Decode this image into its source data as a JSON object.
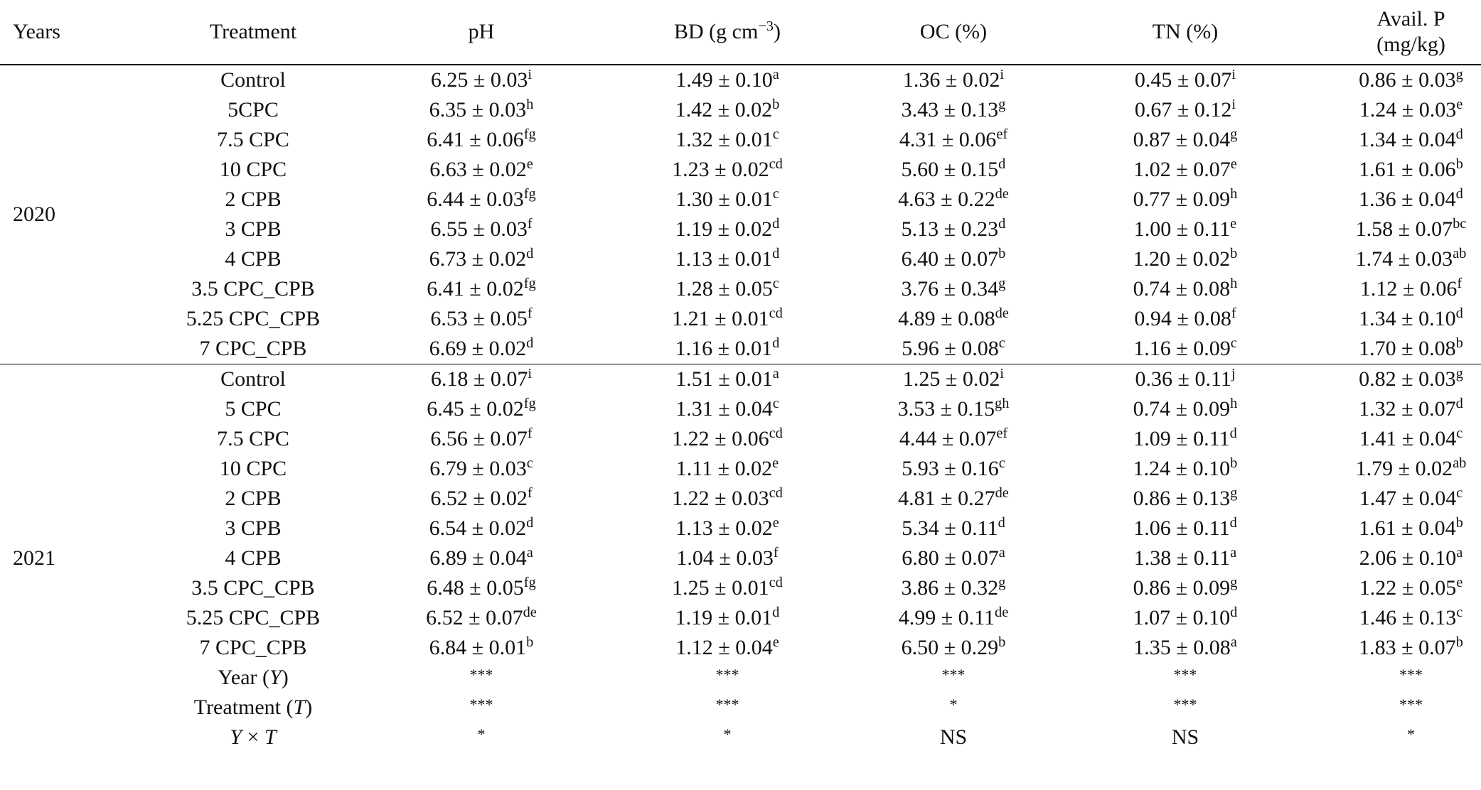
{
  "table": {
    "header": [
      "Years",
      "Treatment",
      "pH",
      [
        {
          "text": "BD (g cm"
        },
        {
          "text": "−3",
          "style": "sup"
        },
        {
          "text": ")"
        }
      ],
      "OC (%)",
      "TN (%)",
      {
        "lines": [
          "Avail. P",
          "(mg/kg)"
        ]
      }
    ],
    "groups": [
      {
        "year": "2020",
        "rows": [
          {
            "treatment": "Control",
            "cells": [
              [
                "6.25 ± 0.03",
                "i"
              ],
              [
                "1.49 ± 0.10",
                "a"
              ],
              [
                "1.36 ± 0.02",
                "i"
              ],
              [
                "0.45 ± 0.07",
                "i"
              ],
              [
                "0.86 ± 0.03",
                "g"
              ]
            ]
          },
          {
            "treatment": "5CPC",
            "cells": [
              [
                "6.35 ± 0.03",
                "h"
              ],
              [
                "1.42 ± 0.02",
                "b"
              ],
              [
                "3.43 ± 0.13",
                "g"
              ],
              [
                "0.67 ± 0.12",
                "i"
              ],
              [
                "1.24 ± 0.03",
                "e"
              ]
            ]
          },
          {
            "treatment": "7.5 CPC",
            "cells": [
              [
                "6.41 ± 0.06",
                "fg"
              ],
              [
                "1.32 ± 0.01",
                "c"
              ],
              [
                "4.31 ± 0.06",
                "ef"
              ],
              [
                "0.87 ± 0.04",
                "g"
              ],
              [
                "1.34 ± 0.04",
                "d"
              ]
            ]
          },
          {
            "treatment": "10 CPC",
            "cells": [
              [
                "6.63 ± 0.02",
                "e"
              ],
              [
                "1.23 ± 0.02",
                "cd"
              ],
              [
                "5.60 ± 0.15",
                "d"
              ],
              [
                "1.02 ± 0.07",
                "e"
              ],
              [
                "1.61 ± 0.06",
                "b"
              ]
            ]
          },
          {
            "treatment": "2 CPB",
            "cells": [
              [
                "6.44 ± 0.03",
                "fg"
              ],
              [
                "1.30 ± 0.01",
                "c"
              ],
              [
                "4.63 ± 0.22",
                "de"
              ],
              [
                "0.77 ± 0.09",
                "h"
              ],
              [
                "1.36 ± 0.04",
                "d"
              ]
            ]
          },
          {
            "treatment": "3 CPB",
            "cells": [
              [
                "6.55 ± 0.03",
                "f"
              ],
              [
                "1.19 ± 0.02",
                "d"
              ],
              [
                "5.13 ± 0.23",
                "d"
              ],
              [
                "1.00 ± 0.11",
                "e"
              ],
              [
                "1.58 ± 0.07",
                "bc"
              ]
            ]
          },
          {
            "treatment": "4 CPB",
            "cells": [
              [
                "6.73 ± 0.02",
                "d"
              ],
              [
                "1.13 ± 0.01",
                "d"
              ],
              [
                "6.40 ± 0.07",
                "b"
              ],
              [
                "1.20 ± 0.02",
                "b"
              ],
              [
                "1.74 ± 0.03",
                "ab"
              ]
            ]
          },
          {
            "treatment": "3.5 CPC_CPB",
            "cells": [
              [
                "6.41 ± 0.02",
                "fg"
              ],
              [
                "1.28 ± 0.05",
                "c"
              ],
              [
                "3.76 ± 0.34",
                "g"
              ],
              [
                "0.74 ± 0.08",
                "h"
              ],
              [
                "1.12 ± 0.06",
                "f"
              ]
            ]
          },
          {
            "treatment": "5.25 CPC_CPB",
            "cells": [
              [
                "6.53 ± 0.05",
                "f"
              ],
              [
                "1.21 ± 0.01",
                "cd"
              ],
              [
                "4.89 ± 0.08",
                "de"
              ],
              [
                "0.94 ± 0.08",
                "f"
              ],
              [
                "1.34 ± 0.10",
                "d"
              ]
            ]
          },
          {
            "treatment": "7 CPC_CPB",
            "cells": [
              [
                "6.69 ± 0.02",
                "d"
              ],
              [
                "1.16 ± 0.01",
                "d"
              ],
              [
                "5.96 ± 0.08",
                "c"
              ],
              [
                "1.16 ± 0.09",
                "c"
              ],
              [
                "1.70 ± 0.08",
                "b"
              ]
            ]
          }
        ]
      },
      {
        "year": "2021",
        "rows": [
          {
            "treatment": "Control",
            "cells": [
              [
                "6.18 ± 0.07",
                "i"
              ],
              [
                "1.51 ± 0.01",
                "a"
              ],
              [
                "1.25 ± 0.02",
                "i"
              ],
              [
                "0.36 ± 0.11",
                "j"
              ],
              [
                "0.82 ± 0.03",
                "g"
              ]
            ]
          },
          {
            "treatment": "5 CPC",
            "cells": [
              [
                "6.45 ± 0.02",
                "fg"
              ],
              [
                "1.31 ± 0.04",
                "c"
              ],
              [
                "3.53 ± 0.15",
                "gh"
              ],
              [
                "0.74 ± 0.09",
                "h"
              ],
              [
                "1.32 ± 0.07",
                "d"
              ]
            ]
          },
          {
            "treatment": "7.5 CPC",
            "cells": [
              [
                "6.56 ± 0.07",
                "f"
              ],
              [
                "1.22 ± 0.06",
                "cd"
              ],
              [
                "4.44 ± 0.07",
                "ef"
              ],
              [
                "1.09 ± 0.11",
                "d"
              ],
              [
                "1.41 ± 0.04",
                "c"
              ]
            ]
          },
          {
            "treatment": "10 CPC",
            "cells": [
              [
                "6.79 ± 0.03",
                "c"
              ],
              [
                "1.11 ± 0.02",
                "e"
              ],
              [
                "5.93 ± 0.16",
                "c"
              ],
              [
                "1.24 ± 0.10",
                "b"
              ],
              [
                "1.79 ± 0.02",
                "ab"
              ]
            ]
          },
          {
            "treatment": "2 CPB",
            "cells": [
              [
                "6.52 ± 0.02",
                "f"
              ],
              [
                "1.22 ± 0.03",
                "cd"
              ],
              [
                "4.81 ± 0.27",
                "de"
              ],
              [
                "0.86 ± 0.13",
                "g"
              ],
              [
                "1.47 ± 0.04",
                "c"
              ]
            ]
          },
          {
            "treatment": "3 CPB",
            "cells": [
              [
                "6.54 ± 0.02",
                "d"
              ],
              [
                "1.13 ± 0.02",
                "e"
              ],
              [
                "5.34 ± 0.11",
                "d"
              ],
              [
                "1.06 ± 0.11",
                "d"
              ],
              [
                "1.61 ± 0.04",
                "b"
              ]
            ]
          },
          {
            "treatment": "4 CPB",
            "cells": [
              [
                "6.89 ± 0.04",
                "a"
              ],
              [
                "1.04 ± 0.03",
                "f"
              ],
              [
                "6.80 ± 0.07",
                "a"
              ],
              [
                "1.38 ± 0.11",
                "a"
              ],
              [
                "2.06 ± 0.10",
                "a"
              ]
            ]
          },
          {
            "treatment": "3.5 CPC_CPB",
            "cells": [
              [
                "6.48 ± 0.05",
                "fg"
              ],
              [
                "1.25 ± 0.01",
                "cd"
              ],
              [
                "3.86 ± 0.32",
                "g"
              ],
              [
                "0.86 ± 0.09",
                "g"
              ],
              [
                "1.22 ± 0.05",
                "e"
              ]
            ]
          },
          {
            "treatment": "5.25 CPC_CPB",
            "cells": [
              [
                "6.52 ± 0.07",
                "de"
              ],
              [
                "1.19 ± 0.01",
                "d"
              ],
              [
                "4.99 ± 0.11",
                "de"
              ],
              [
                "1.07 ± 0.10",
                "d"
              ],
              [
                "1.46 ± 0.13",
                "c"
              ]
            ]
          },
          {
            "treatment": "7 CPC_CPB",
            "cells": [
              [
                "6.84 ± 0.01",
                "b"
              ],
              [
                "1.12 ± 0.04",
                "e"
              ],
              [
                "6.50 ± 0.29",
                "b"
              ],
              [
                "1.35 ± 0.08",
                "a"
              ],
              [
                "1.83 ± 0.07",
                "b"
              ]
            ]
          },
          {
            "treatment": [
              {
                "text": "Year ("
              },
              {
                "text": "Y",
                "style": "italic"
              },
              {
                "text": ")"
              }
            ],
            "cells": [
              "***",
              "***",
              "***",
              "***",
              "***"
            ]
          },
          {
            "treatment": [
              {
                "text": "Treatment ("
              },
              {
                "text": "T",
                "style": "italic"
              },
              {
                "text": ")"
              }
            ],
            "cells": [
              "***",
              "***",
              "*",
              "***",
              "***"
            ]
          },
          {
            "treatment": [
              {
                "text": "Y",
                "style": "italic"
              },
              {
                "text": " × "
              },
              {
                "text": "T",
                "style": "italic"
              }
            ],
            "cells": [
              "*",
              "*",
              "NS",
              "NS",
              "*"
            ]
          }
        ]
      }
    ]
  }
}
